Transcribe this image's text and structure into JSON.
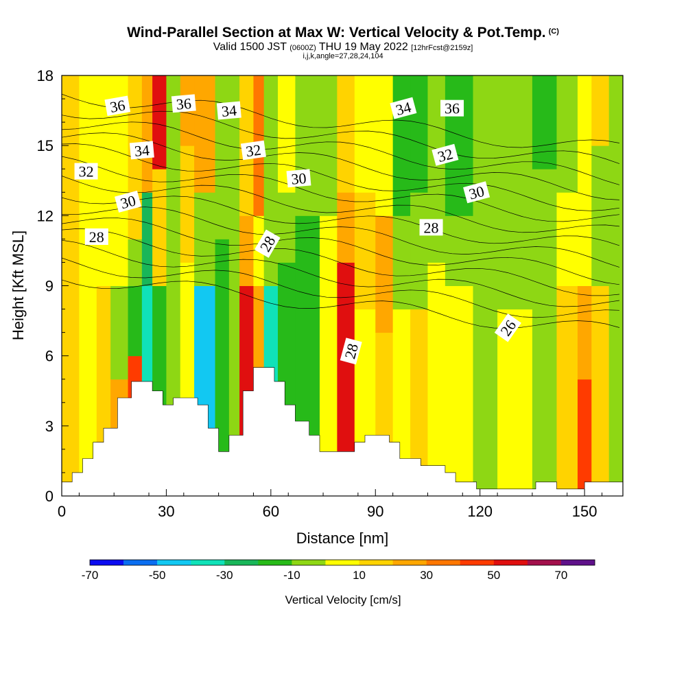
{
  "header": {
    "title": "Wind-Parallel Section at Max W: Vertical Velocity & Pot.Temp.",
    "copyright": "(C)",
    "subtitle_a": "Valid 1500 JST",
    "subtitle_b": "(0600Z)",
    "subtitle_c": "THU 19 May 2022",
    "subtitle_d": "[12hrFcst@2159z]",
    "params": "i,j,k,angle=27,28,24,104"
  },
  "chart_data": {
    "type": "heatmap",
    "xlabel": "Distance [nm]",
    "ylabel": "Height [Kft MSL]",
    "xlim": [
      0,
      161
    ],
    "ylim": [
      0,
      18
    ],
    "xticks": [
      0,
      30,
      60,
      90,
      120,
      150
    ],
    "yticks": [
      0,
      3,
      6,
      9,
      12,
      15,
      18
    ],
    "colorbar": {
      "label": "Vertical Velocity [cm/s]",
      "ticks": [
        -70,
        -50,
        -30,
        -10,
        10,
        30,
        50,
        70
      ],
      "colors": [
        "#0b0bf0",
        "#0a6ef0",
        "#12c8f2",
        "#10e2b8",
        "#19b659",
        "#27ba19",
        "#8ed714",
        "#ffff00",
        "#ffd300",
        "#ffa700",
        "#ff7700",
        "#ff3b00",
        "#e00f0f",
        "#a3104c",
        "#5f118a"
      ]
    },
    "terrain": [
      [
        0,
        0.6
      ],
      [
        3,
        0.6
      ],
      [
        3,
        1.0
      ],
      [
        6,
        1.0
      ],
      [
        6,
        1.6
      ],
      [
        9,
        1.6
      ],
      [
        9,
        2.3
      ],
      [
        12,
        2.3
      ],
      [
        12,
        2.9
      ],
      [
        16,
        2.9
      ],
      [
        16,
        4.2
      ],
      [
        20,
        4.2
      ],
      [
        20,
        4.9
      ],
      [
        26,
        4.9
      ],
      [
        26,
        4.5
      ],
      [
        29,
        4.5
      ],
      [
        29,
        3.9
      ],
      [
        32,
        3.9
      ],
      [
        32,
        4.2
      ],
      [
        39,
        4.2
      ],
      [
        39,
        3.9
      ],
      [
        42,
        3.9
      ],
      [
        42,
        2.9
      ],
      [
        45,
        2.9
      ],
      [
        45,
        1.9
      ],
      [
        48,
        1.9
      ],
      [
        48,
        2.6
      ],
      [
        52,
        2.6
      ],
      [
        52,
        4.5
      ],
      [
        55,
        4.5
      ],
      [
        55,
        5.5
      ],
      [
        61,
        5.5
      ],
      [
        61,
        4.9
      ],
      [
        64,
        4.9
      ],
      [
        64,
        3.9
      ],
      [
        67,
        3.9
      ],
      [
        67,
        3.2
      ],
      [
        71,
        3.2
      ],
      [
        71,
        2.6
      ],
      [
        74,
        2.6
      ],
      [
        74,
        1.9
      ],
      [
        84,
        1.9
      ],
      [
        84,
        2.3
      ],
      [
        87,
        2.3
      ],
      [
        87,
        2.6
      ],
      [
        94,
        2.6
      ],
      [
        94,
        2.3
      ],
      [
        97,
        2.3
      ],
      [
        97,
        1.6
      ],
      [
        103,
        1.6
      ],
      [
        103,
        1.3
      ],
      [
        110,
        1.3
      ],
      [
        110,
        1.0
      ],
      [
        113,
        1.0
      ],
      [
        113,
        0.6
      ],
      [
        119,
        0.6
      ],
      [
        119,
        0.3
      ],
      [
        136,
        0.3
      ],
      [
        136,
        0.6
      ],
      [
        142,
        0.6
      ],
      [
        142,
        0.3
      ],
      [
        150,
        0.3
      ],
      [
        150,
        0.6
      ],
      [
        161,
        0.6
      ]
    ],
    "isentrope_labels": [
      {
        "text": "36",
        "x": 16,
        "y": 16.7,
        "rot": -10
      },
      {
        "text": "36",
        "x": 35,
        "y": 16.8,
        "rot": -5
      },
      {
        "text": "34",
        "x": 48,
        "y": 16.5,
        "rot": -5
      },
      {
        "text": "34",
        "x": 23,
        "y": 14.8,
        "rot": -5
      },
      {
        "text": "32",
        "x": 7,
        "y": 13.9,
        "rot": 0
      },
      {
        "text": "32",
        "x": 55,
        "y": 14.8,
        "rot": -8
      },
      {
        "text": "30",
        "x": 19,
        "y": 12.6,
        "rot": -15
      },
      {
        "text": "30",
        "x": 68,
        "y": 13.6,
        "rot": -5
      },
      {
        "text": "28",
        "x": 10,
        "y": 11.1,
        "rot": 0
      },
      {
        "text": "28",
        "x": 59,
        "y": 10.8,
        "rot": -60
      },
      {
        "text": "28",
        "x": 83,
        "y": 6.2,
        "rot": -75
      },
      {
        "text": "34",
        "x": 98,
        "y": 16.6,
        "rot": -15
      },
      {
        "text": "36",
        "x": 112,
        "y": 16.6,
        "rot": 0
      },
      {
        "text": "32",
        "x": 110,
        "y": 14.6,
        "rot": -15
      },
      {
        "text": "28",
        "x": 106,
        "y": 11.5,
        "rot": 0
      },
      {
        "text": "30",
        "x": 119,
        "y": 13.0,
        "rot": -15
      },
      {
        "text": "26",
        "x": 128,
        "y": 7.2,
        "rot": -55
      }
    ]
  }
}
